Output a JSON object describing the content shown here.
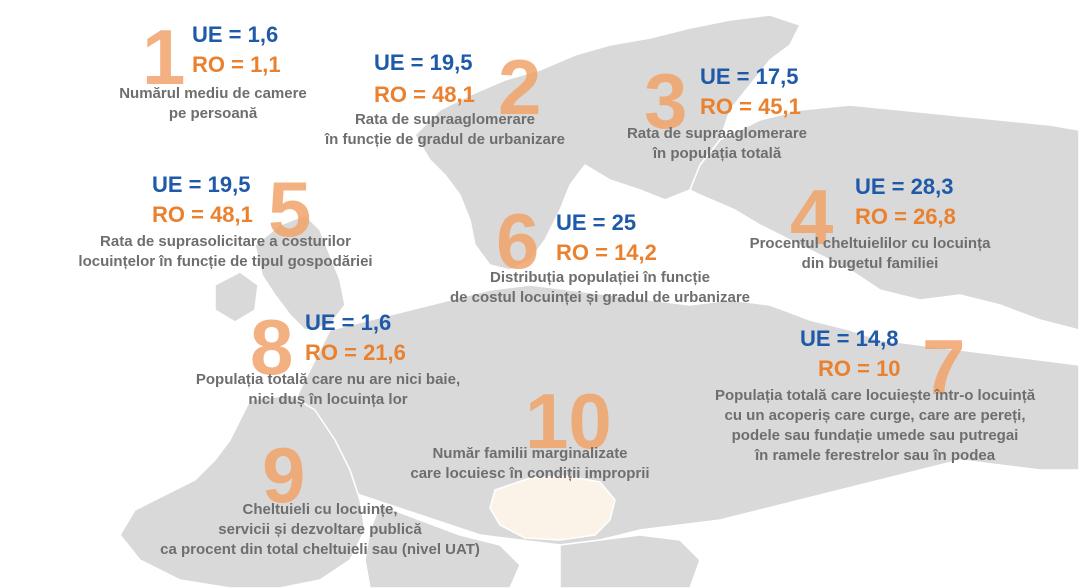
{
  "colors": {
    "ue": "#1e5aa8",
    "ro": "#e9812f",
    "number": "#f2a36a",
    "map": "#d9d9d9",
    "romania": "#fbf3e8",
    "text": "#6e6e6e"
  },
  "items": [
    {
      "number": "1",
      "ue": "UE = 1,6",
      "ro": "RO = 1,1",
      "desc": [
        "Numărul mediu de camere",
        "pe persoană"
      ]
    },
    {
      "number": "2",
      "ue": "UE = 19,5",
      "ro": "RO = 48,1",
      "desc": [
        "Rata de supraaglomerare",
        "în funcție de gradul de urbanizare"
      ]
    },
    {
      "number": "3",
      "ue": "UE = 17,5",
      "ro": "RO = 45,1",
      "desc": [
        "Rata de supraaglomerare",
        "în populația totală"
      ]
    },
    {
      "number": "4",
      "ue": "UE = 28,3",
      "ro": "RO = 26,8",
      "desc": [
        "Procentul cheltuielilor cu locuința",
        "din bugetul familiei"
      ]
    },
    {
      "number": "5",
      "ue": "UE = 19,5",
      "ro": "RO = 48,1",
      "desc": [
        "Rata de suprasolicitare a costurilor",
        "locuințelor în funcție de tipul gospodăriei"
      ]
    },
    {
      "number": "6",
      "ue": "UE = 25",
      "ro": "RO = 14,2",
      "desc": [
        "Distribuția populației în funcție",
        "de costul locuinței și gradul de urbanizare"
      ]
    },
    {
      "number": "7",
      "ue": "UE = 14,8",
      "ro": "RO = 10",
      "desc": [
        "Populația totală care locuiește într-o locuință",
        "cu un acoperiș care curge, care are pereți,",
        "podele sau fundație umede sau putregai",
        "în ramele ferestrelor sau în podea"
      ]
    },
    {
      "number": "8",
      "ue": "UE = 1,6",
      "ro": "RO = 21,6",
      "desc": [
        "Populația totală care nu are nici baie,",
        "nici duș în locuința lor"
      ]
    },
    {
      "number": "9",
      "ue": "",
      "ro": "",
      "desc": [
        "Cheltuieli cu locuințe,",
        "servicii și dezvoltare publică",
        "ca procent din total cheltuieli sau (nivel UAT)"
      ]
    },
    {
      "number": "10",
      "ue": "",
      "ro": "",
      "desc": [
        "Număr familii marginalizate",
        "care locuiesc în condiții improprii"
      ]
    }
  ]
}
